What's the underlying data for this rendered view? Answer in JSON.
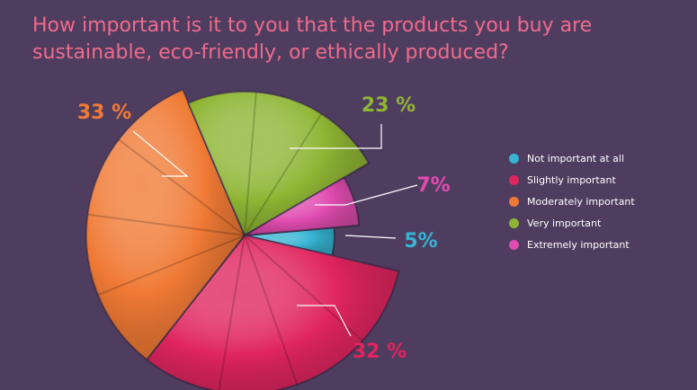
{
  "title": "How important is it to you that the products you buy are sustainable, eco-friendly, or ethically produced?",
  "chart_data": {
    "type": "pie",
    "title": "How important is it to you that the products you buy are sustainable, eco-friendly, or ethically produced?",
    "categories": [
      "Not important at all",
      "Slightly important",
      "Moderately  important",
      "Very important",
      "Extremely important"
    ],
    "values": [
      5,
      32,
      33,
      23,
      7
    ],
    "value_labels": [
      "5%",
      "32 %",
      "33 %",
      "23 %",
      "7%"
    ],
    "colors": [
      "#36b4d2",
      "#e0255f",
      "#f07a35",
      "#8fb534",
      "#e04cb0"
    ],
    "legend_position": "right"
  },
  "legend": [
    {
      "label": "Not important at all",
      "color": "#36b4d2"
    },
    {
      "label": "Slightly important",
      "color": "#e0255f"
    },
    {
      "label": "Moderately  important",
      "color": "#f07a35"
    },
    {
      "label": "Very important",
      "color": "#8fb534"
    },
    {
      "label": "Extremely important",
      "color": "#e04cb0"
    }
  ]
}
